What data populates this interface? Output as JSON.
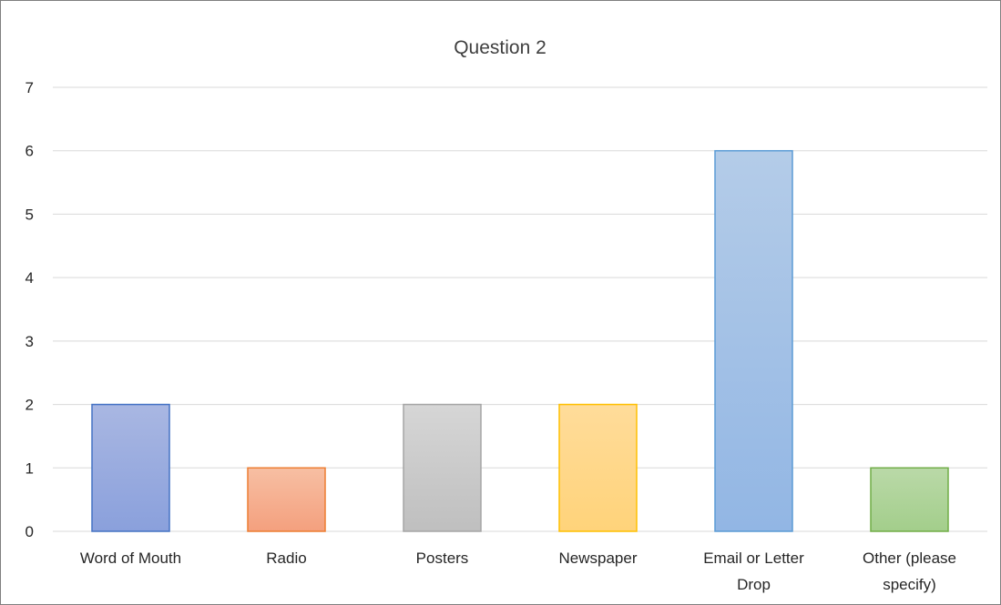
{
  "chart_data": {
    "type": "bar",
    "title": "Question 2",
    "categories": [
      [
        "Word of Mouth"
      ],
      [
        "Radio"
      ],
      [
        "Posters"
      ],
      [
        "Newspaper"
      ],
      [
        "Email or Letter",
        "Drop"
      ],
      [
        "Other (please",
        "specify)"
      ]
    ],
    "values": [
      2,
      1,
      2,
      2,
      6,
      1
    ],
    "ylim": [
      0,
      7
    ],
    "yticks": [
      "0",
      "1",
      "2",
      "3",
      "4",
      "5",
      "6",
      "7"
    ],
    "grid": true,
    "legend": "none",
    "colors": [
      {
        "top": "#a9b7e2",
        "bottom": "#8aa0dc",
        "border": "#4472c4"
      },
      {
        "top": "#f7bfa3",
        "bottom": "#f4a07e",
        "border": "#ed7d31"
      },
      {
        "top": "#d6d6d6",
        "bottom": "#bfbfbf",
        "border": "#a5a5a5"
      },
      {
        "top": "#ffdc9a",
        "bottom": "#ffd37a",
        "border": "#ffc000"
      },
      {
        "top": "#b4cce8",
        "bottom": "#92b6e4",
        "border": "#5b9bd5"
      },
      {
        "top": "#bad9a8",
        "bottom": "#a3ce8b",
        "border": "#70ad47"
      }
    ]
  }
}
